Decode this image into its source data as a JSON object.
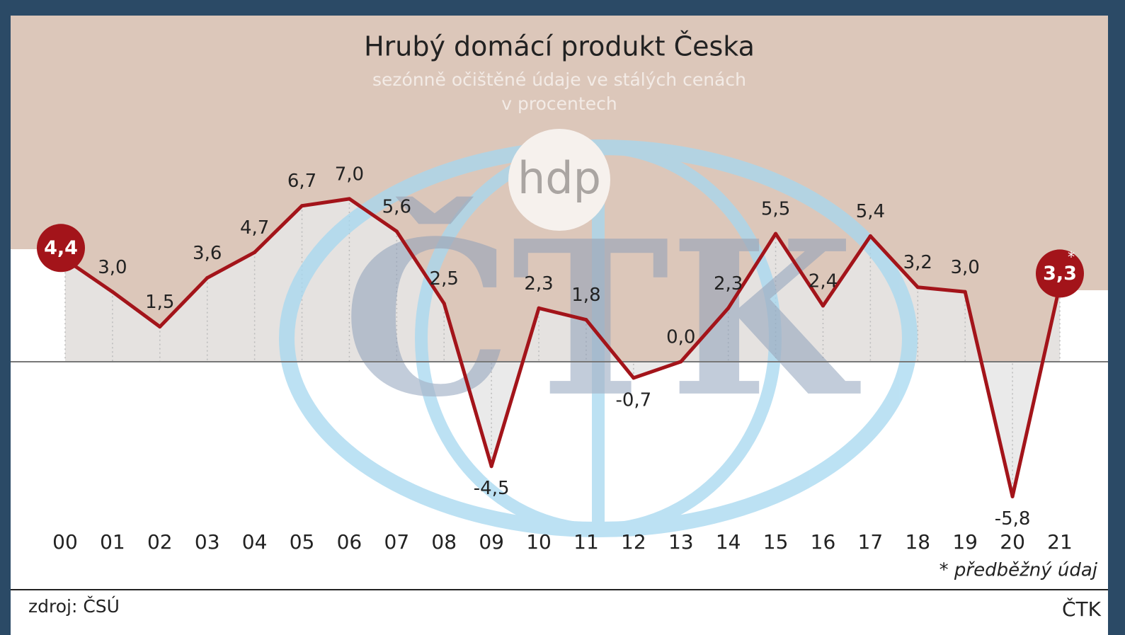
{
  "chart_data": {
    "type": "line",
    "title": "Hrubý domácí produkt Česka",
    "subtitle": [
      "sezónně očištěné údaje ve stálých cenách",
      "v procentech"
    ],
    "categories": [
      "00",
      "01",
      "02",
      "03",
      "04",
      "05",
      "06",
      "07",
      "08",
      "09",
      "10",
      "11",
      "12",
      "13",
      "14",
      "15",
      "16",
      "17",
      "18",
      "19",
      "20",
      "21"
    ],
    "values": [
      4.4,
      3.0,
      1.5,
      3.6,
      4.7,
      6.7,
      7.0,
      5.6,
      2.5,
      -4.5,
      2.3,
      1.8,
      -0.7,
      0.0,
      2.3,
      5.5,
      2.4,
      5.4,
      3.2,
      3.0,
      -5.8,
      3.3
    ],
    "value_labels": [
      "4,4",
      "3,0",
      "1,5",
      "3,6",
      "4,7",
      "6,7",
      "7,0",
      "5,6",
      "2,5",
      "-4,5",
      "2,3",
      "1,8",
      "-0,7",
      "0,0",
      "2,3",
      "5,5",
      "2,4",
      "5,4",
      "3,2",
      "3,0",
      "-5,8",
      "3,3"
    ],
    "color": "#a3141a",
    "ylim": [
      -6,
      8
    ],
    "preliminary_mark": "*",
    "footnote": "* předběžný údaj",
    "source": "zdroj: ČSÚ",
    "credit": "ČTK",
    "watermark": "ČTK",
    "logo": "hdp"
  }
}
